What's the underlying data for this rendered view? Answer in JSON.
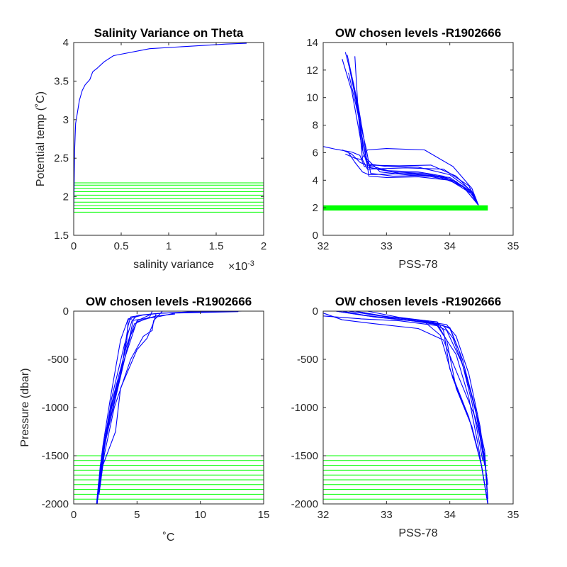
{
  "chart_data": [
    {
      "type": "line",
      "title": "Salinity Variance on Theta",
      "xlabel": "salinity variance",
      "x_exponent_label": "×10",
      "x_exponent_value": "-3",
      "ylabel": "Potential temp (˚C)",
      "xlim": [
        0,
        2
      ],
      "ylim": [
        1.5,
        4
      ],
      "xticks": [
        0,
        0.5,
        1,
        1.5,
        2
      ],
      "xtick_labels": [
        "0",
        "0.5",
        "1",
        "1.5",
        "2"
      ],
      "yticks": [
        1.5,
        2,
        2.5,
        3,
        3.5,
        4
      ],
      "ytick_labels": [
        "1.5",
        "2",
        "2.5",
        "3",
        "3.5",
        "4"
      ],
      "series_color": "#0000ff",
      "series": [
        {
          "x": [
            0.0,
            0.005,
            0.01,
            0.02,
            0.04,
            0.06,
            0.09,
            0.12,
            0.17,
            0.2,
            0.25,
            0.32,
            0.42,
            0.8,
            1.2,
            1.6,
            1.82
          ],
          "y": [
            1.8,
            2.2,
            2.6,
            2.95,
            3.1,
            3.25,
            3.38,
            3.45,
            3.52,
            3.62,
            3.67,
            3.75,
            3.83,
            3.92,
            3.95,
            3.98,
            3.99
          ]
        }
      ],
      "level_lines": [
        1.8,
        1.845,
        1.885,
        1.93,
        1.975,
        2.02,
        2.065,
        2.11,
        2.15,
        2.18
      ],
      "level_color": "#00ff00"
    },
    {
      "type": "line",
      "title": "OW chosen levels -R1902666",
      "xlabel": "PSS-78",
      "ylabel": "",
      "xlim": [
        32,
        35
      ],
      "ylim": [
        0,
        14
      ],
      "xticks": [
        32,
        33,
        34,
        35
      ],
      "xtick_labels": [
        "32",
        "33",
        "34",
        "35"
      ],
      "yticks": [
        0,
        2,
        4,
        6,
        8,
        10,
        12,
        14
      ],
      "ytick_labels": [
        "0",
        "2",
        "4",
        "6",
        "8",
        "10",
        "12",
        "14"
      ],
      "series_color": "#0000ff",
      "series": [
        {
          "x": [
            32.0,
            32.2,
            32.45,
            32.58,
            32.65,
            33.0,
            33.5,
            33.9,
            34.2,
            34.45
          ],
          "y": [
            6.45,
            6.25,
            6.05,
            5.8,
            5.0,
            4.7,
            4.6,
            4.3,
            3.6,
            2.2
          ]
        },
        {
          "x": [
            32.3,
            32.45,
            32.55,
            32.62,
            32.7,
            33.1,
            33.6,
            34.0,
            34.3,
            34.45
          ],
          "y": [
            12.8,
            10.5,
            8.0,
            6.2,
            5.1,
            4.6,
            4.5,
            4.1,
            3.3,
            2.2
          ]
        },
        {
          "x": [
            32.35,
            32.48,
            32.58,
            32.63,
            32.75,
            33.2,
            33.8,
            34.2,
            34.45
          ],
          "y": [
            13.3,
            11.0,
            8.5,
            6.0,
            4.9,
            4.5,
            4.3,
            3.6,
            2.2
          ]
        },
        {
          "x": [
            32.4,
            32.5,
            32.6,
            32.68,
            32.9,
            33.3,
            33.9,
            34.3,
            34.45
          ],
          "y": [
            12.5,
            10.2,
            7.5,
            5.6,
            4.6,
            4.4,
            4.2,
            3.3,
            2.2
          ]
        },
        {
          "x": [
            32.38,
            32.55,
            32.65,
            32.72,
            33.0,
            33.5,
            34.0,
            34.35,
            34.45
          ],
          "y": [
            13.1,
            9.5,
            6.8,
            4.3,
            4.2,
            4.25,
            4.0,
            3.0,
            2.2
          ]
        },
        {
          "x": [
            32.4,
            32.55,
            32.68,
            32.75,
            33.1,
            33.6,
            34.1,
            34.4,
            34.45
          ],
          "y": [
            11.8,
            8.8,
            6.3,
            4.5,
            4.3,
            4.35,
            3.9,
            2.8,
            2.2
          ]
        },
        {
          "x": [
            32.45,
            32.52,
            32.6,
            32.7,
            33.0,
            33.5,
            34.0,
            34.35,
            34.45
          ],
          "y": [
            11.5,
            9.8,
            7.2,
            5.2,
            5.0,
            4.95,
            4.4,
            3.2,
            2.2
          ]
        },
        {
          "x": [
            32.3,
            32.45,
            32.58,
            32.68,
            33.2,
            33.7,
            34.1,
            34.38,
            34.45
          ],
          "y": [
            6.2,
            5.9,
            5.3,
            5.1,
            5.05,
            5.1,
            4.3,
            3.0,
            2.2
          ]
        },
        {
          "x": [
            32.35,
            32.5,
            32.6,
            32.7,
            33.0,
            33.6,
            34.05,
            34.35,
            34.45
          ],
          "y": [
            5.9,
            5.6,
            5.5,
            6.2,
            6.3,
            6.2,
            5.0,
            3.4,
            2.2
          ]
        },
        {
          "x": [
            32.5,
            32.55,
            32.62,
            32.7,
            33.3,
            33.9,
            34.3,
            34.45
          ],
          "y": [
            13.0,
            9.2,
            5.5,
            4.8,
            4.9,
            4.8,
            3.6,
            2.2
          ]
        },
        {
          "x": [
            32.4,
            32.5,
            32.62,
            32.72,
            33.4,
            34.0,
            34.35,
            34.45
          ],
          "y": [
            6.0,
            5.3,
            4.6,
            4.4,
            4.5,
            4.2,
            3.1,
            2.2
          ]
        }
      ],
      "level_band": [
        1.8,
        2.18
      ],
      "level_band_xrange": [
        32,
        34.6
      ],
      "level_color": "#00ff00"
    },
    {
      "type": "line",
      "title": "OW chosen levels -R1902666",
      "xlabel": "˚C",
      "ylabel": "Pressure (dbar)",
      "xlim": [
        0,
        15
      ],
      "ylim": [
        -2000,
        0
      ],
      "xticks": [
        0,
        5,
        10,
        15
      ],
      "xtick_labels": [
        "0",
        "5",
        "10",
        "15"
      ],
      "yticks": [
        -2000,
        -1500,
        -1000,
        -500,
        0
      ],
      "ytick_labels": [
        "-2000",
        "-1500",
        "-1000",
        "-500",
        "0"
      ],
      "series_color": "#0000ff",
      "series": [
        {
          "x": [
            13.3,
            10.0,
            7.0,
            5.5,
            4.3,
            3.7,
            2.9,
            2.3,
            1.95,
            1.8
          ],
          "y": [
            0,
            -10,
            -20,
            -40,
            -80,
            -300,
            -900,
            -1400,
            -1800,
            -2000
          ]
        },
        {
          "x": [
            12.0,
            9.0,
            6.5,
            5.0,
            4.6,
            4.0,
            3.0,
            2.4,
            2.0,
            1.85
          ],
          "y": [
            0,
            -8,
            -25,
            -45,
            -100,
            -350,
            -900,
            -1400,
            -1800,
            -2000
          ]
        },
        {
          "x": [
            6.2,
            6.0,
            5.5,
            4.8,
            4.2,
            3.1,
            2.3,
            1.95
          ],
          "y": [
            0,
            -60,
            -90,
            -130,
            -350,
            -900,
            -1500,
            -1900
          ]
        },
        {
          "x": [
            7.0,
            6.3,
            6.2,
            5.5,
            4.5,
            3.2,
            2.4,
            2.0
          ],
          "y": [
            0,
            -100,
            -200,
            -260,
            -500,
            -1000,
            -1500,
            -1900
          ]
        },
        {
          "x": [
            6.5,
            6.3,
            5.8,
            5.0,
            3.7,
            3.3,
            2.3,
            2.0
          ],
          "y": [
            -30,
            -120,
            -280,
            -400,
            -800,
            -1250,
            -1600,
            -1900
          ]
        },
        {
          "x": [
            5.0,
            4.5,
            4.3,
            4.0,
            3.8,
            2.9,
            2.2,
            1.9
          ],
          "y": [
            -50,
            -60,
            -150,
            -400,
            -600,
            -1000,
            -1500,
            -1950
          ]
        },
        {
          "x": [
            4.6,
            4.3,
            4.2,
            3.6,
            2.8,
            2.1,
            1.85
          ],
          "y": [
            -80,
            -90,
            -300,
            -700,
            -1100,
            -1600,
            -2000
          ]
        },
        {
          "x": [
            6.0,
            5.5,
            5.0,
            4.0,
            3.0,
            2.2,
            1.9
          ],
          "y": [
            -40,
            -70,
            -100,
            -500,
            -1000,
            -1550,
            -1950
          ]
        },
        {
          "x": [
            13.0,
            8.0,
            6.8,
            5.8,
            4.7,
            4.2,
            3.4,
            2.5,
            2.0
          ],
          "y": [
            -5,
            -20,
            -55,
            -75,
            -95,
            -400,
            -850,
            -1350,
            -1850
          ]
        },
        {
          "x": [
            8.0,
            6.5,
            5.0,
            4.5,
            3.9,
            3.0,
            2.2,
            1.9
          ],
          "y": [
            -30,
            -50,
            -110,
            -250,
            -550,
            -1050,
            -1550,
            -1950
          ]
        }
      ],
      "level_lines": [
        -1500,
        -1550,
        -1600,
        -1650,
        -1700,
        -1750,
        -1800,
        -1850,
        -1900,
        -1950
      ],
      "level_color": "#00ff00"
    },
    {
      "type": "line",
      "title": "OW chosen levels -R1902666",
      "xlabel": "PSS-78",
      "ylabel": "",
      "xlim": [
        32,
        35
      ],
      "ylim": [
        -2000,
        0
      ],
      "xticks": [
        32,
        33,
        34,
        35
      ],
      "xtick_labels": [
        "32",
        "33",
        "34",
        "35"
      ],
      "yticks": [
        -2000,
        -1500,
        -1000,
        -500,
        0
      ],
      "ytick_labels": [
        "-2000",
        "-1500",
        "-1000",
        "-500",
        "0"
      ],
      "series_color": "#0000ff",
      "series": [
        {
          "x": [
            32.0,
            32.2,
            32.6,
            33.2,
            33.8,
            34.1,
            34.3,
            34.45,
            34.6
          ],
          "y": [
            -50,
            -60,
            -80,
            -100,
            -150,
            -450,
            -900,
            -1400,
            -2000
          ]
        },
        {
          "x": [
            32.0,
            32.3,
            32.8,
            33.5,
            33.9,
            34.15,
            34.4,
            34.55,
            34.6
          ],
          "y": [
            -20,
            -90,
            -130,
            -180,
            -300,
            -700,
            -1100,
            -1500,
            -2000
          ]
        },
        {
          "x": [
            32.2,
            32.5,
            33.0,
            33.6,
            33.85,
            34.05,
            34.35,
            34.5,
            34.6
          ],
          "y": [
            0,
            -30,
            -70,
            -110,
            -250,
            -700,
            -1200,
            -1600,
            -2000
          ]
        },
        {
          "x": [
            32.3,
            32.6,
            33.1,
            33.7,
            33.95,
            34.2,
            34.4,
            34.55,
            34.6
          ],
          "y": [
            0,
            -40,
            -80,
            -120,
            -200,
            -550,
            -1000,
            -1450,
            -1950
          ]
        },
        {
          "x": [
            32.2,
            32.7,
            33.3,
            33.8,
            33.95,
            34.1,
            34.35,
            34.5,
            34.6
          ],
          "y": [
            0,
            -50,
            -90,
            -130,
            -300,
            -800,
            -1200,
            -1600,
            -2000
          ]
        },
        {
          "x": [
            32.3,
            32.8,
            33.4,
            33.9,
            34.05,
            34.25,
            34.45,
            34.58
          ],
          "y": [
            0,
            -60,
            -100,
            -150,
            -280,
            -650,
            -1150,
            -1700
          ]
        },
        {
          "x": [
            32.5,
            33.0,
            33.5,
            33.95,
            34.1,
            34.3,
            34.48,
            34.6
          ],
          "y": [
            0,
            -55,
            -95,
            -140,
            -260,
            -650,
            -1200,
            -1800
          ]
        },
        {
          "x": [
            32.4,
            32.9,
            33.4,
            33.8,
            33.9,
            34.0,
            34.3,
            34.5,
            34.6
          ],
          "y": [
            0,
            -50,
            -85,
            -110,
            -200,
            -600,
            -1100,
            -1600,
            -2000
          ]
        },
        {
          "x": [
            32.6,
            33.0,
            33.6,
            34.0,
            34.2,
            34.4,
            34.55
          ],
          "y": [
            -10,
            -60,
            -100,
            -170,
            -500,
            -1000,
            -1600
          ]
        },
        {
          "x": [
            32.7,
            33.2,
            33.7,
            34.0,
            34.15,
            34.35,
            34.52
          ],
          "y": [
            0,
            -65,
            -105,
            -180,
            -420,
            -950,
            -1550
          ]
        }
      ],
      "level_lines": [
        -1500,
        -1550,
        -1600,
        -1650,
        -1700,
        -1750,
        -1800,
        -1850,
        -1900,
        -1950
      ],
      "level_xrange": [
        32,
        34.6
      ],
      "level_color": "#00ff00"
    }
  ]
}
